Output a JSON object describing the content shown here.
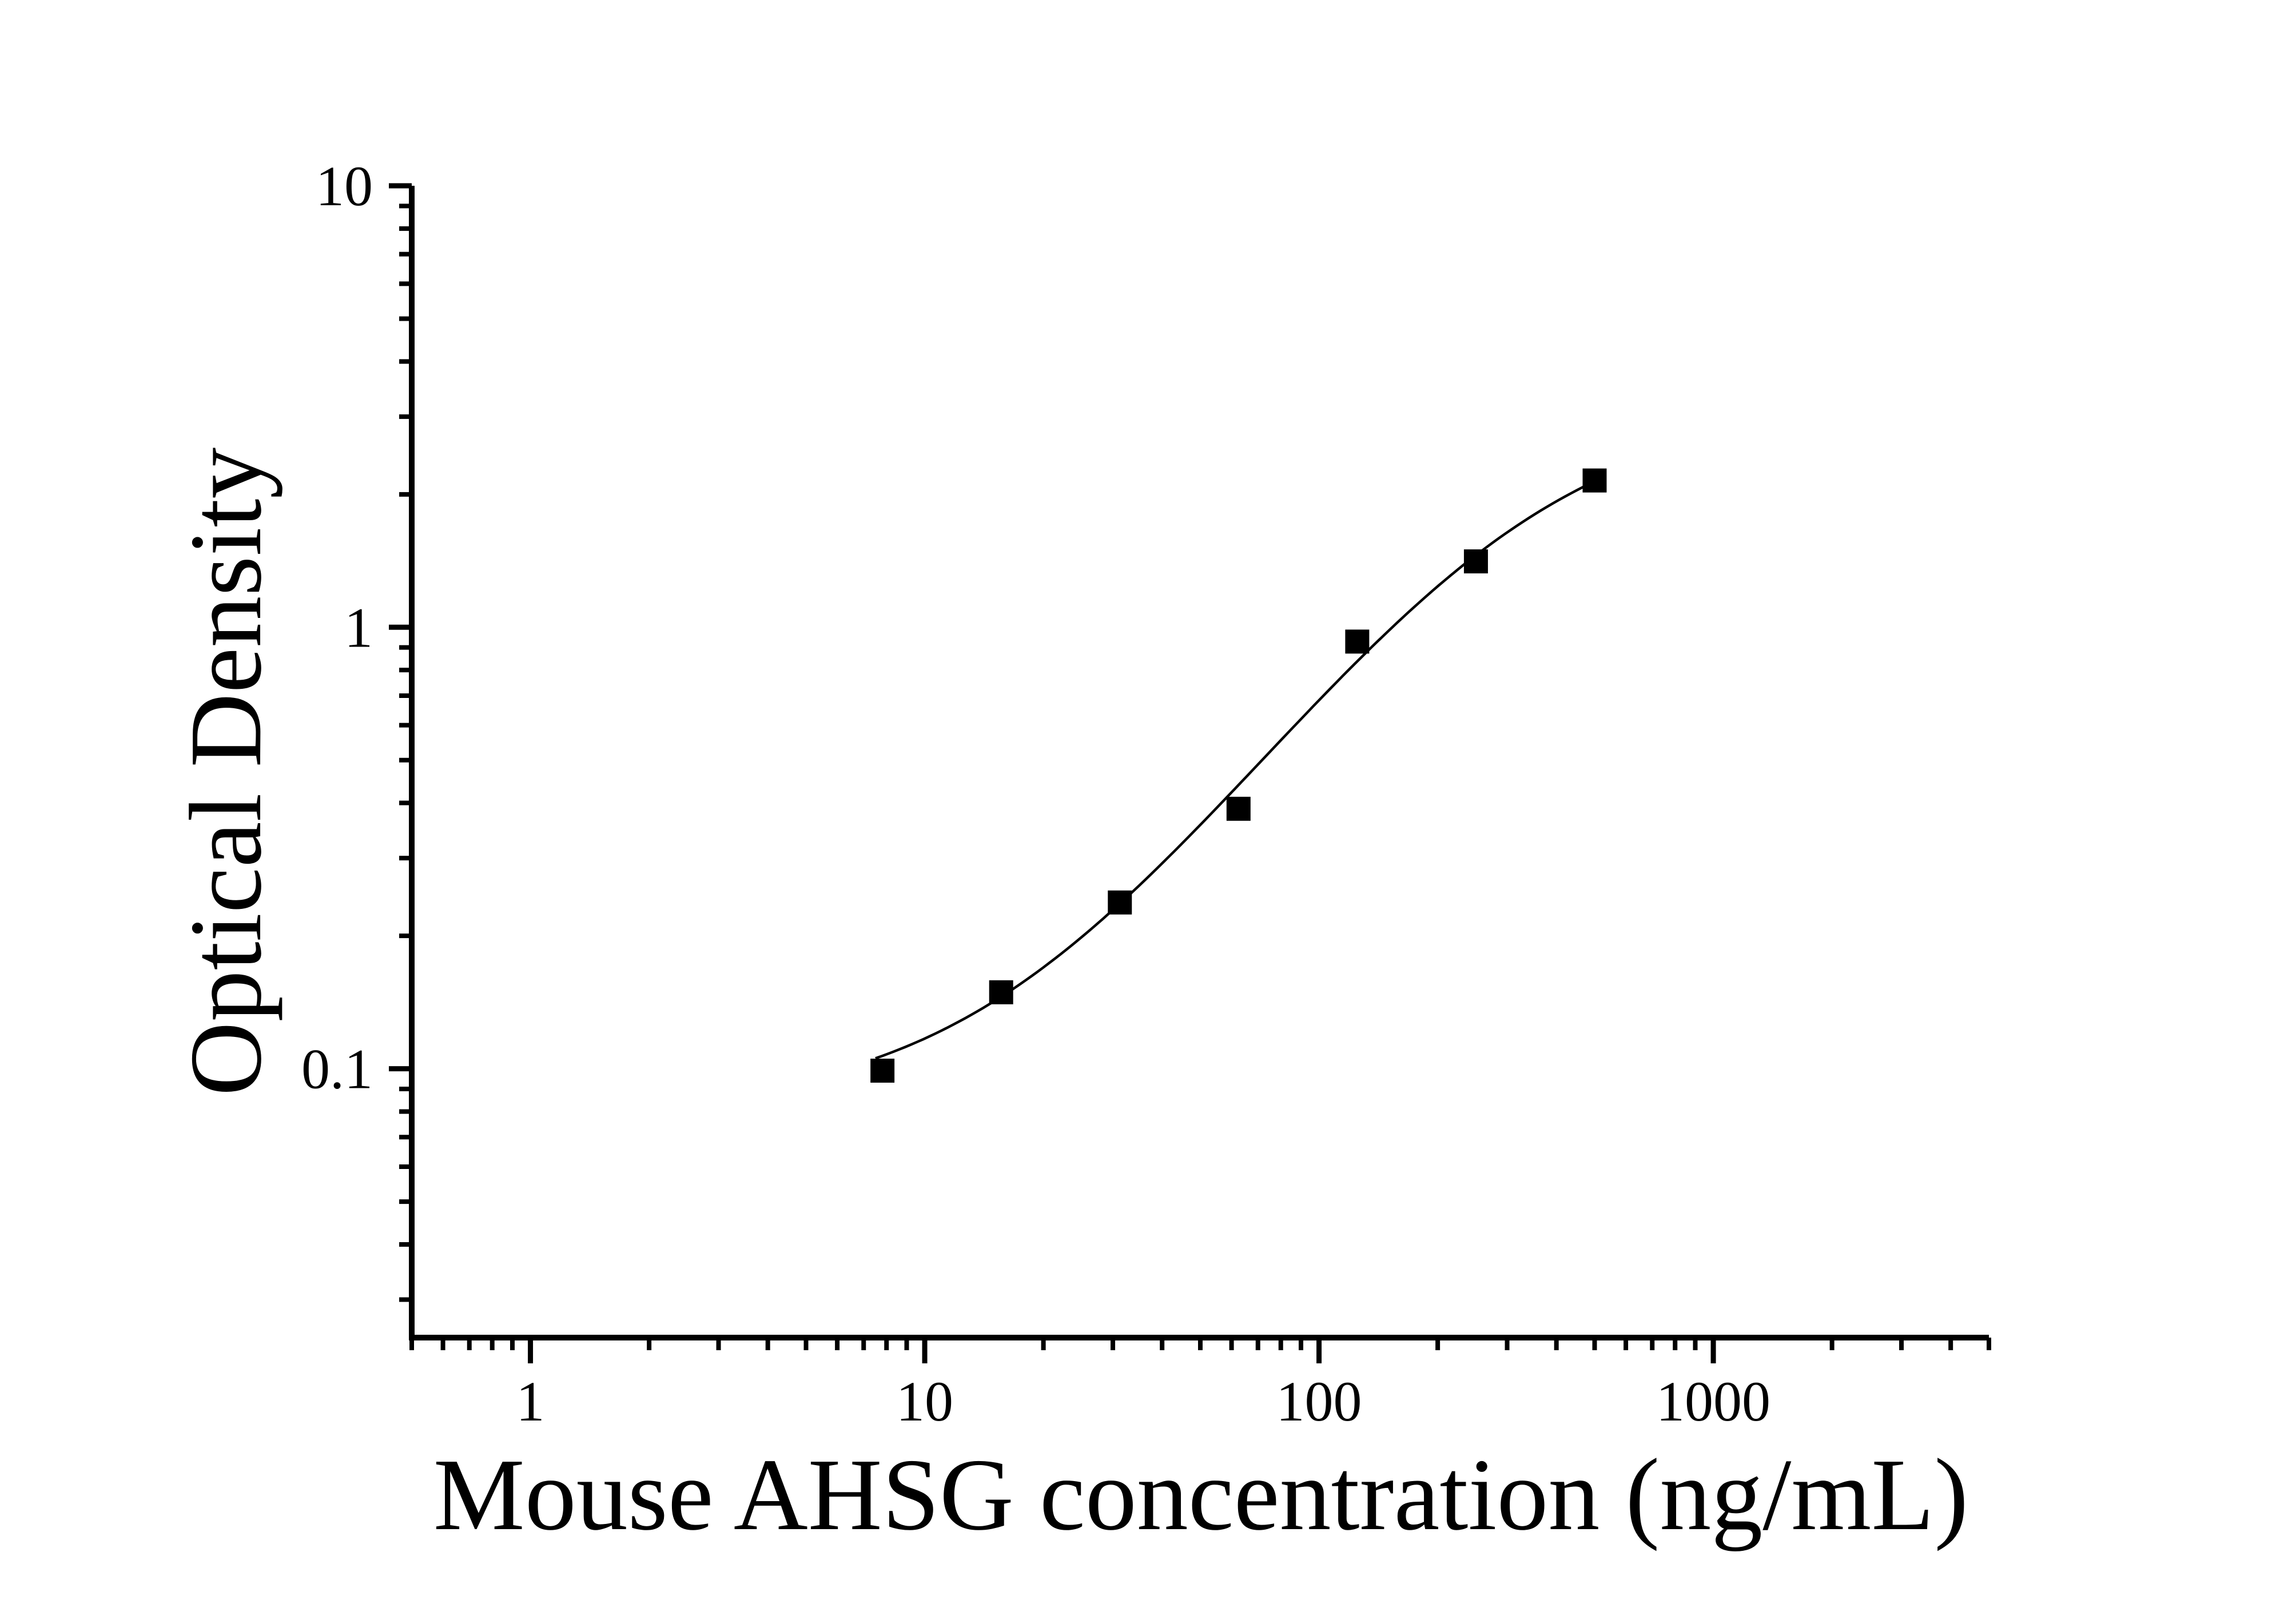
{
  "page": {
    "background": "#ffffff"
  },
  "chart_data": {
    "type": "scatter",
    "title": "",
    "xlabel": "Mouse AHSG concentration (ng/mL)",
    "ylabel": "Optical Density",
    "x_scale": "log",
    "y_scale": "log",
    "x_range": [
      0.5,
      5000
    ],
    "y_range": [
      0.0246,
      10
    ],
    "x_major_ticks": [
      1,
      10,
      100,
      1000
    ],
    "x_tick_labels": [
      "1",
      "10",
      "100",
      "1000"
    ],
    "y_major_ticks": [
      10,
      1,
      0.1
    ],
    "y_tick_labels": [
      "10",
      "1",
      "0.1"
    ],
    "minor_tick_mantissas": [
      2,
      3,
      4,
      5,
      6,
      7,
      8,
      9
    ],
    "grid": false,
    "legend": null,
    "series": [
      {
        "name": "standard-curve-points",
        "marker": "filled-square",
        "points": [
          {
            "x": 7.8125,
            "y": 0.099
          },
          {
            "x": 15.625,
            "y": 0.149
          },
          {
            "x": 31.25,
            "y": 0.238
          },
          {
            "x": 62.5,
            "y": 0.388
          },
          {
            "x": 125,
            "y": 0.928
          },
          {
            "x": 250,
            "y": 1.41
          },
          {
            "x": 500,
            "y": 2.15
          }
        ]
      }
    ],
    "fit_curve": {
      "model": "4PL",
      "a": 0.08,
      "b": 1.3,
      "c": 300,
      "d": 3.2,
      "x_from": 7.5,
      "x_to": 500
    },
    "colors": {
      "axis": "#000000",
      "curve": "#000000",
      "marker": "#000000",
      "background": "#ffffff"
    }
  }
}
